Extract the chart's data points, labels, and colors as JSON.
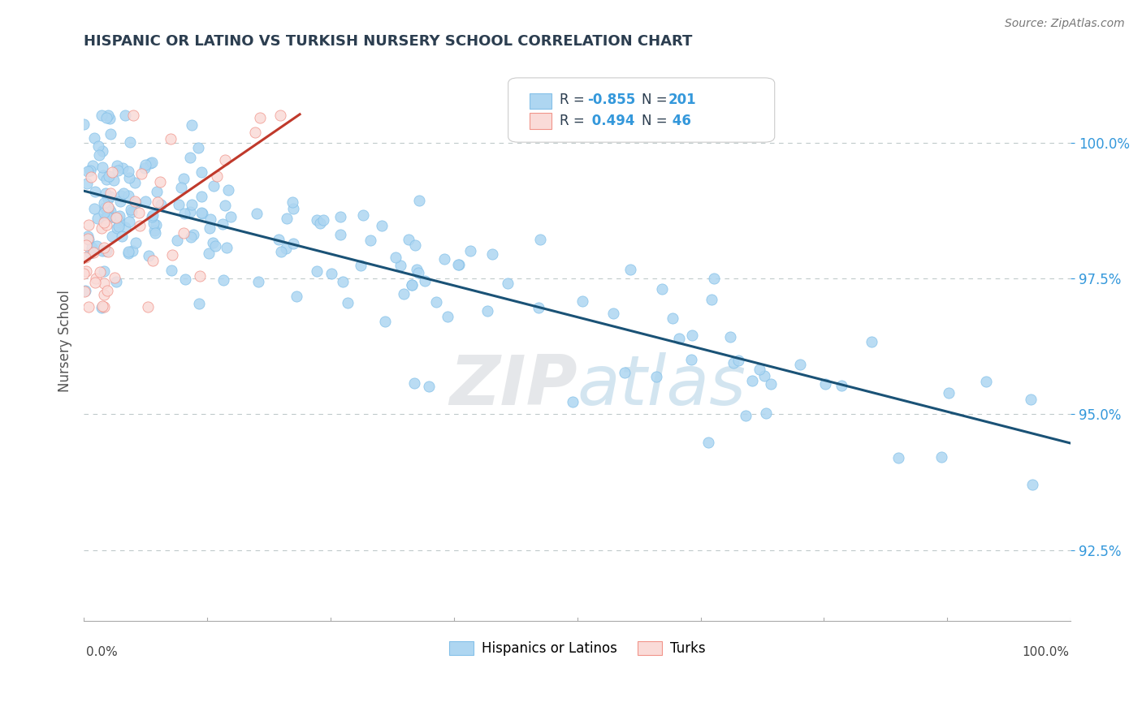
{
  "title": "HISPANIC OR LATINO VS TURKISH NURSERY SCHOOL CORRELATION CHART",
  "source_text": "Source: ZipAtlas.com",
  "ylabel": "Nursery School",
  "yticks": [
    92.5,
    95.0,
    97.5,
    100.0
  ],
  "ytick_labels": [
    "92.5%",
    "95.0%",
    "97.5%",
    "100.0%"
  ],
  "xmin": 0.0,
  "xmax": 100.0,
  "ymin": 91.2,
  "ymax": 101.5,
  "blue_R": -0.855,
  "blue_N": 201,
  "pink_R": 0.494,
  "pink_N": 46,
  "blue_dot_color": "#AED6F1",
  "blue_dot_edge": "#85C1E9",
  "pink_dot_color": "#FADBD8",
  "pink_dot_edge": "#F1948A",
  "trend_blue": "#1A5276",
  "trend_pink": "#C0392B",
  "legend_label_blue": "Hispanics or Latinos",
  "legend_label_pink": "Turks",
  "watermark_color": "#D5D8DC",
  "background_color": "#FFFFFF",
  "grid_color": "#BFC9CA",
  "title_color": "#2C3E50",
  "axis_label_color": "#555555",
  "r_n_blue": "#1A5276",
  "r_n_label": "#2C3E50"
}
